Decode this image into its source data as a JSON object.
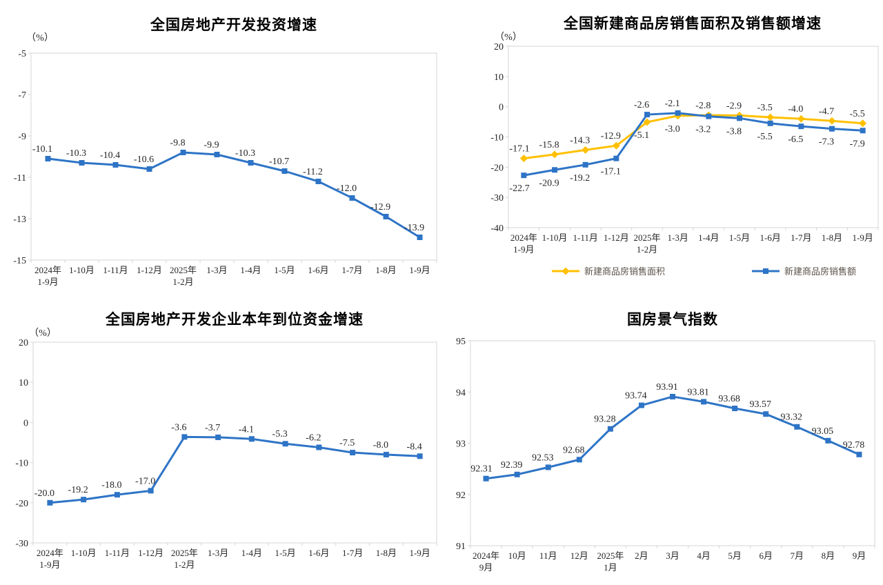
{
  "colors": {
    "blue": "#2E74C6",
    "yellow": "#FFC000",
    "axis": "#D4D4D4",
    "text": "#262626"
  },
  "chart_data": [
    {
      "type": "line",
      "title": "全国房地产开发投资增速",
      "unit": "（%）",
      "ylim": [
        -15,
        -5
      ],
      "yticks": [
        -5,
        -7,
        -9,
        -11,
        -13,
        -15
      ],
      "grid": false,
      "legend_position": "none",
      "categories": [
        "2024年\n1-9月",
        "1-10月",
        "1-11月",
        "1-12月",
        "2025年\n1-2月",
        "1-3月",
        "1-4月",
        "1-5月",
        "1-6月",
        "1-7月",
        "1-8月",
        "1-9月"
      ],
      "series": [
        {
          "name": "全国房地产开发投资增速",
          "color_key": "blue",
          "marker": "square",
          "values": [
            -10.1,
            -10.3,
            -10.4,
            -10.6,
            -9.8,
            -9.9,
            -10.3,
            -10.7,
            -11.2,
            -12.0,
            -12.9,
            -13.9
          ],
          "labels": [
            "-10.1",
            "-10.3",
            "-10.4",
            "-10.6",
            "-9.8",
            "-9.9",
            "-10.3",
            "-10.7",
            "-11.2",
            "-12.0",
            "-12.9",
            "-13.9"
          ],
          "label_positions": [
            "above",
            "above",
            "above",
            "above",
            "above",
            "above",
            "above",
            "above",
            "above",
            "above",
            "above",
            "above"
          ]
        }
      ]
    },
    {
      "type": "line",
      "title": "全国新建商品房销售面积及销售额增速",
      "unit": "（%）",
      "ylim": [
        -40,
        20
      ],
      "yticks": [
        20,
        10,
        0,
        -10,
        -20,
        -30,
        -40
      ],
      "grid": false,
      "legend_position": "bottom",
      "categories": [
        "2024年\n1-9月",
        "1-10月",
        "1-11月",
        "1-12月",
        "2025年\n1-2月",
        "1-3月",
        "1-4月",
        "1-5月",
        "1-6月",
        "1-7月",
        "1-8月",
        "1-9月"
      ],
      "series": [
        {
          "name": "新建商品房销售面积",
          "color_key": "yellow",
          "marker": "diamond",
          "values": [
            -17.1,
            -15.8,
            -14.3,
            -12.9,
            -5.1,
            -3.0,
            -2.8,
            -2.9,
            -3.5,
            -4.0,
            -4.7,
            -5.5
          ],
          "labels": [
            "-17.1",
            "-15.8",
            "-14.3",
            "-12.9",
            "-5.1",
            "-3.0",
            "-2.8",
            "-2.9",
            "-3.5",
            "-4.0",
            "-4.7",
            "-5.5"
          ],
          "label_positions": [
            "above",
            "above",
            "above",
            "above",
            "below",
            "below",
            "above",
            "above",
            "above",
            "above",
            "above",
            "above"
          ]
        },
        {
          "name": "新建商品房销售额",
          "color_key": "blue",
          "marker": "square",
          "values": [
            -22.7,
            -20.9,
            -19.2,
            -17.1,
            -2.6,
            -2.1,
            -3.2,
            -3.8,
            -5.5,
            -6.5,
            -7.3,
            -7.9
          ],
          "labels": [
            "-22.7",
            "-20.9",
            "-19.2",
            "-17.1",
            "-2.6",
            "-2.1",
            "-3.2",
            "-3.8",
            "-5.5",
            "-6.5",
            "-7.3",
            "-7.9"
          ],
          "label_positions": [
            "below",
            "below",
            "below",
            "below",
            "above",
            "above",
            "below",
            "below",
            "below",
            "below",
            "below",
            "below"
          ]
        }
      ],
      "legend": {
        "items": [
          {
            "label": "新建商品房销售面积",
            "color_key": "yellow",
            "marker": "diamond"
          },
          {
            "label": "新建商品房销售额",
            "color_key": "blue",
            "marker": "square"
          }
        ]
      }
    },
    {
      "type": "line",
      "title": "全国房地产开发企业本年到位资金增速",
      "unit": "（%）",
      "ylim": [
        -30,
        20
      ],
      "yticks": [
        20,
        10,
        0,
        -10,
        -20,
        -30
      ],
      "grid": false,
      "legend_position": "none",
      "categories": [
        "2024年\n1-9月",
        "1-10月",
        "1-11月",
        "1-12月",
        "2025年\n1-2月",
        "1-3月",
        "1-4月",
        "1-5月",
        "1-6月",
        "1-7月",
        "1-8月",
        "1-9月"
      ],
      "series": [
        {
          "name": "全国房地产开发企业本年到位资金增速",
          "color_key": "blue",
          "marker": "square",
          "values": [
            -20.0,
            -19.2,
            -18.0,
            -17.0,
            -3.6,
            -3.7,
            -4.1,
            -5.3,
            -6.2,
            -7.5,
            -8.0,
            -8.4
          ],
          "labels": [
            "-20.0",
            "-19.2",
            "-18.0",
            "-17.0",
            "-3.6",
            "-3.7",
            "-4.1",
            "-5.3",
            "-6.2",
            "-7.5",
            "-8.0",
            "-8.4"
          ],
          "label_positions": [
            "above",
            "above",
            "above",
            "above",
            "above",
            "above",
            "above",
            "above",
            "above",
            "above",
            "above",
            "above"
          ]
        }
      ]
    },
    {
      "type": "line",
      "title": "国房景气指数",
      "unit": "",
      "ylim": [
        91,
        95
      ],
      "yticks": [
        95,
        94,
        93,
        92,
        91
      ],
      "grid": false,
      "legend_position": "none",
      "categories": [
        "2024年\n9月",
        "10月",
        "11月",
        "12月",
        "2025年\n1月",
        "2月",
        "3月",
        "4月",
        "5月",
        "6月",
        "7月",
        "8月",
        "9月"
      ],
      "series": [
        {
          "name": "国房景气指数",
          "color_key": "blue",
          "marker": "square",
          "values": [
            92.31,
            92.39,
            92.53,
            92.68,
            93.28,
            93.74,
            93.91,
            93.81,
            93.68,
            93.57,
            93.32,
            93.05,
            92.78
          ],
          "labels": [
            "92.31",
            "92.39",
            "92.53",
            "92.68",
            "93.28",
            "93.74",
            "93.91",
            "93.81",
            "93.68",
            "93.57",
            "93.32",
            "93.05",
            "92.78"
          ],
          "label_positions": [
            "above",
            "above",
            "above",
            "above",
            "above",
            "above",
            "above",
            "above",
            "above",
            "above",
            "above",
            "above",
            "above"
          ]
        }
      ]
    }
  ]
}
